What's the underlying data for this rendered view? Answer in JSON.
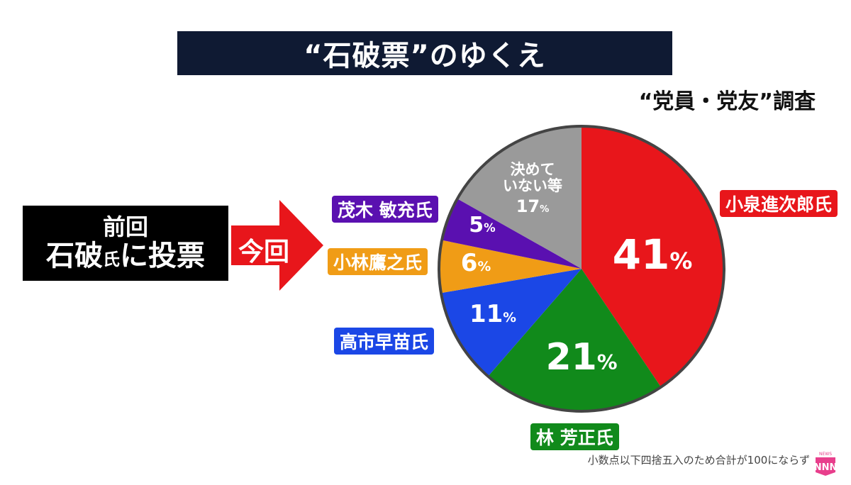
{
  "header": {
    "title": "“石破票”のゆくえ",
    "subtitle": "“党員・党友”調査"
  },
  "left": {
    "line1": "前回",
    "line2_main": "石破",
    "line2_small": "氏",
    "line2_rest": "に投票",
    "arrow_label": "今回"
  },
  "chart_data": {
    "type": "pie",
    "start": "12 o'clock",
    "direction": "clockwise",
    "slices": [
      {
        "label": "小泉進次郎氏",
        "value": 41,
        "display": "41",
        "color": "#e8161b"
      },
      {
        "label": "林 芳正氏",
        "value": 21,
        "display": "21",
        "color": "#118a1b"
      },
      {
        "label": "高市早苗氏",
        "value": 11,
        "display": "11",
        "color": "#1b47e6"
      },
      {
        "label": "小林鷹之氏",
        "value": 6,
        "display": "6",
        "color": "#f09c16"
      },
      {
        "label": "茂木 敏充氏",
        "value": 5,
        "display": "5",
        "color": "#5a10b0"
      },
      {
        "label": "決めて いない等",
        "value": 17,
        "display": "17",
        "color": "#9a9a9a"
      }
    ],
    "unit": "%",
    "undecided_line1": "決めて",
    "undecided_line2": "いない等"
  },
  "footnote": "小数点以下四捨五入のため合計が100にならず",
  "logo": {
    "text": "日テレNEWS NNN",
    "color": "#e83e8c"
  }
}
